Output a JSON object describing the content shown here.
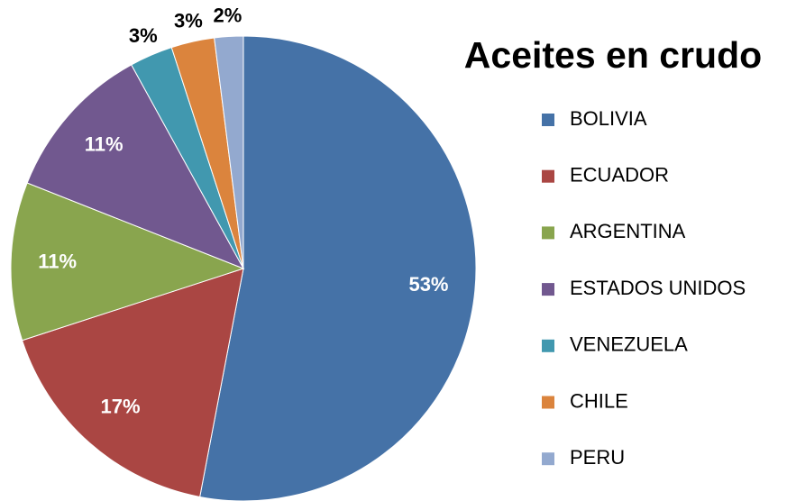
{
  "chart_data": {
    "type": "pie",
    "title": "Aceites en crudo",
    "categories": [
      "BOLIVIA",
      "ECUADOR",
      "ARGENTINA",
      "ESTADOS UNIDOS",
      "VENEZUELA",
      "CHILE",
      "PERU"
    ],
    "values": [
      53,
      17,
      11,
      11,
      3,
      3,
      2
    ],
    "value_labels": [
      "53%",
      "17%",
      "11%",
      "11%",
      "3%",
      "3%",
      "2%"
    ],
    "colors": [
      "#4572a7",
      "#aa4643",
      "#89a54e",
      "#71588f",
      "#4198af",
      "#db843d",
      "#93a9cf"
    ],
    "legend": "right"
  }
}
